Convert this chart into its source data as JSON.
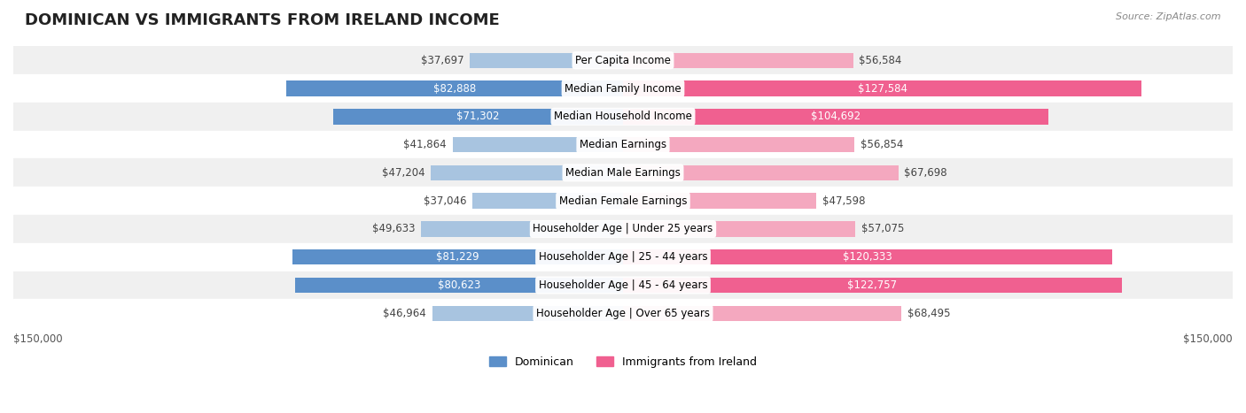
{
  "title": "DOMINICAN VS IMMIGRANTS FROM IRELAND INCOME",
  "source": "Source: ZipAtlas.com",
  "categories": [
    "Per Capita Income",
    "Median Family Income",
    "Median Household Income",
    "Median Earnings",
    "Median Male Earnings",
    "Median Female Earnings",
    "Householder Age | Under 25 years",
    "Householder Age | 25 - 44 years",
    "Householder Age | 45 - 64 years",
    "Householder Age | Over 65 years"
  ],
  "dominican": [
    37697,
    82888,
    71302,
    41864,
    47204,
    37046,
    49633,
    81229,
    80623,
    46964
  ],
  "ireland": [
    56584,
    127584,
    104692,
    56854,
    67698,
    47598,
    57075,
    120333,
    122757,
    68495
  ],
  "dominican_color_light": "#a8c4e0",
  "dominican_color_dark": "#5b8fc9",
  "ireland_color_light": "#f4a8bf",
  "ireland_color_dark": "#f06090",
  "max_value": 150000,
  "x_label_left": "$150,000",
  "x_label_right": "$150,000",
  "legend_dominican": "Dominican",
  "legend_ireland": "Immigrants from Ireland",
  "bar_height": 0.55,
  "row_bg_color": "#f0f0f0",
  "row_bg_alt": "#ffffff",
  "title_fontsize": 13,
  "label_fontsize": 8.5,
  "value_fontsize": 8.5,
  "category_fontsize": 8.5
}
